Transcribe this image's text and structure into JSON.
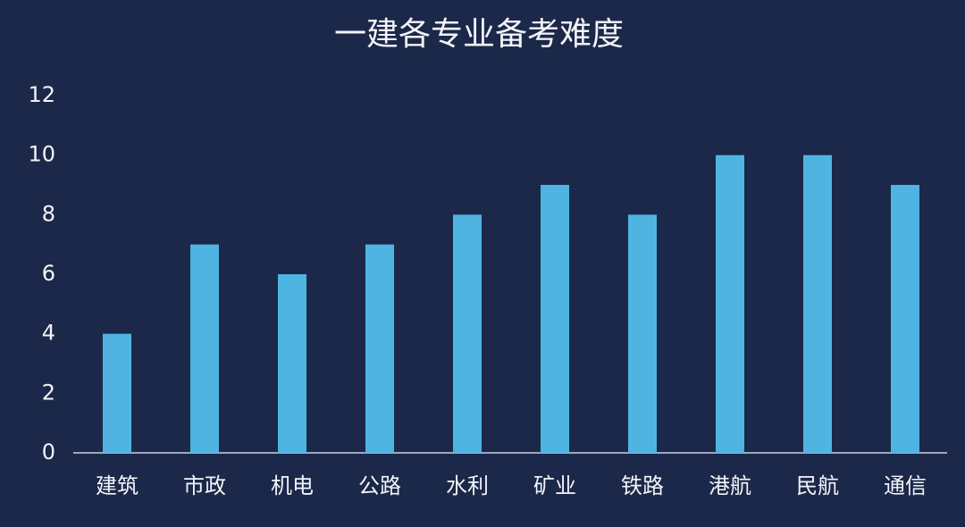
{
  "chart_data": {
    "type": "bar",
    "title": "一建各专业备考难度",
    "categories": [
      "建筑",
      "市政",
      "机电",
      "公路",
      "水利",
      "矿业",
      "铁路",
      "港航",
      "民航",
      "通信"
    ],
    "values": [
      4,
      7,
      6,
      7,
      8,
      9,
      8,
      10,
      10,
      9
    ],
    "color": "#4fb4e2",
    "ylim": [
      0,
      12
    ],
    "yticks": [
      0,
      2,
      4,
      6,
      8,
      10,
      12
    ],
    "grid": false
  }
}
